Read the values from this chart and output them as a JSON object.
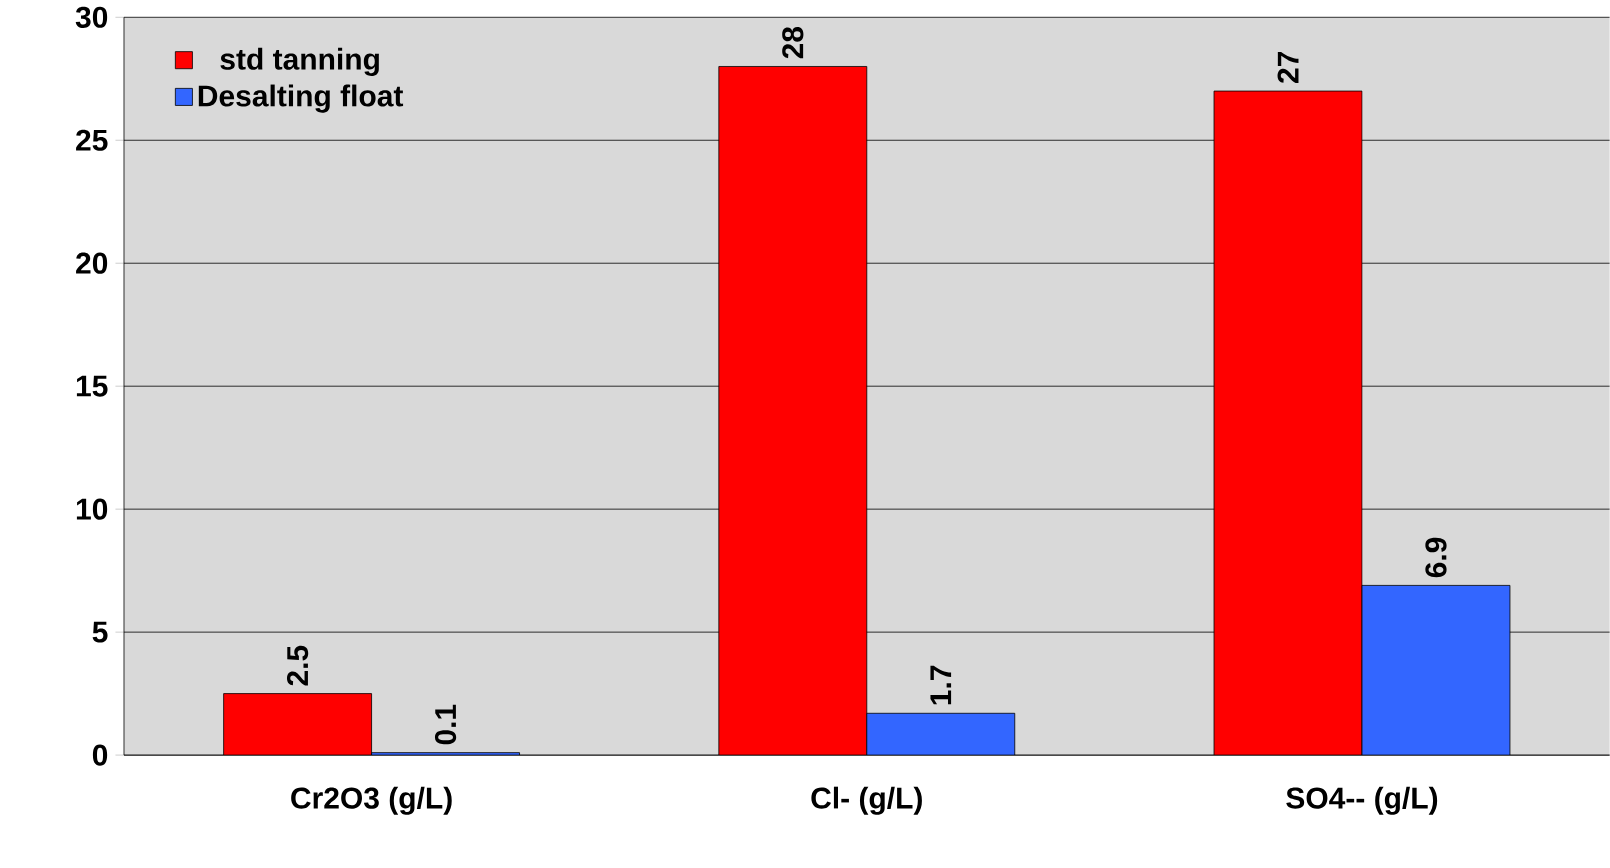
{
  "chart_data": {
    "type": "bar",
    "categories": [
      "Cr2O3 (g/L)",
      "Cl- (g/L)",
      "SO4-- (g/L)"
    ],
    "series": [
      {
        "name": "std tanning",
        "color": "#ff0000",
        "values": [
          2.5,
          28,
          27
        ]
      },
      {
        "name": "Desalting float",
        "color": "#3366ff",
        "values": [
          0.1,
          1.7,
          6.9
        ]
      }
    ],
    "ylim": [
      0,
      30
    ],
    "yticks": [
      0,
      5,
      10,
      15,
      20,
      25,
      30
    ],
    "grid": "y",
    "legend": "top left",
    "data_labels": true
  }
}
